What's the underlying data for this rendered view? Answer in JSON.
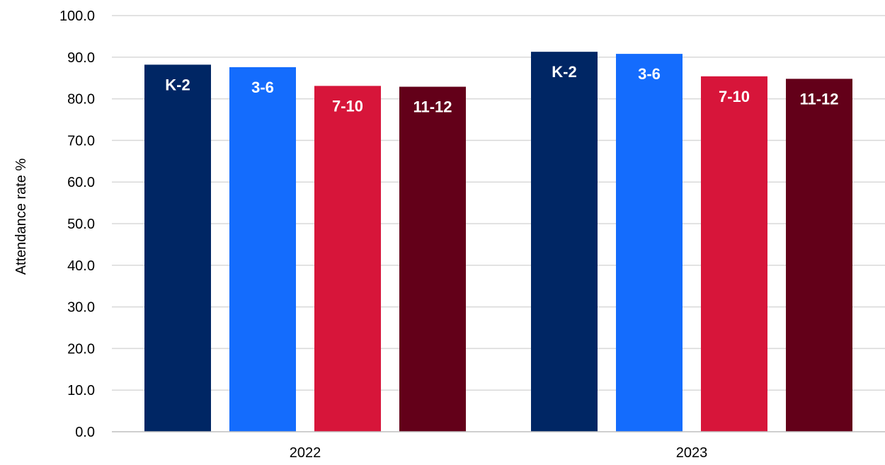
{
  "chart_data": {
    "type": "bar",
    "title": "",
    "xlabel": "",
    "ylabel": "Attendance rate %",
    "categories": [
      "2022",
      "2023"
    ],
    "ylim": [
      0,
      100
    ],
    "yticks": [
      "0.0",
      "10.0",
      "20.0",
      "30.0",
      "40.0",
      "50.0",
      "60.0",
      "70.0",
      "80.0",
      "90.0",
      "100.0"
    ],
    "grid": true,
    "legend": "none",
    "series": [
      {
        "name": "K-2",
        "color": "#002664",
        "values": [
          88.2,
          91.3
        ]
      },
      {
        "name": "3-6",
        "color": "#146cfd",
        "values": [
          87.6,
          90.8
        ]
      },
      {
        "name": "7-10",
        "color": "#d7153a",
        "values": [
          83.1,
          85.4
        ]
      },
      {
        "name": "11-12",
        "color": "#630019",
        "values": [
          82.9,
          84.8
        ]
      }
    ]
  }
}
